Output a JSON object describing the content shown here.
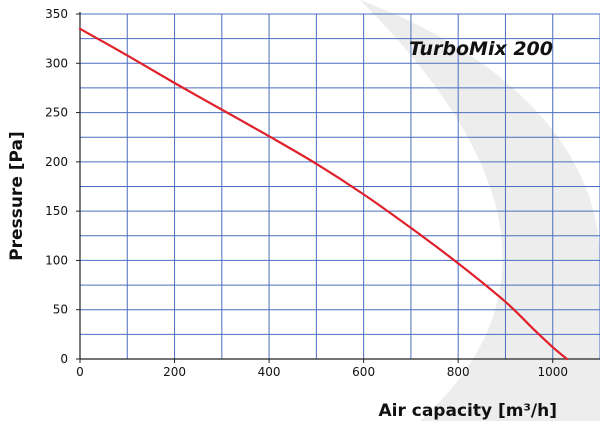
{
  "chart_data": {
    "type": "line",
    "title": "TurboMix 200",
    "xlabel": "Air capacity [m³/h]",
    "ylabel": "Pressure [Pa]",
    "xlim": [
      0,
      1100
    ],
    "ylim": [
      0,
      350
    ],
    "x_ticks": [
      0,
      200,
      400,
      600,
      800,
      1000
    ],
    "y_ticks": [
      0,
      50,
      100,
      150,
      200,
      250,
      300,
      350
    ],
    "x_grid_step": 100,
    "y_grid_step": 25,
    "grid": true,
    "legend": "none",
    "colors": {
      "curve": "#e0202a",
      "grid": "#4a6fc0",
      "axis": "#222222",
      "background_shape": "#ededed"
    },
    "series": [
      {
        "x": [
          0,
          100,
          200,
          300,
          400,
          500,
          600,
          700,
          800,
          900,
          960,
          1000,
          1030
        ],
        "values": [
          335,
          308,
          280,
          253,
          226,
          198,
          167,
          133,
          97,
          58,
          30,
          12,
          0
        ]
      }
    ]
  }
}
